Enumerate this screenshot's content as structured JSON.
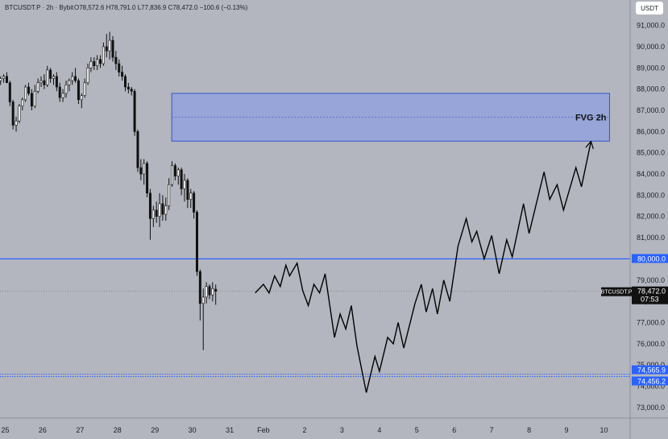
{
  "header": {
    "symbol_line": "BTCUSDT.P · 2h · Bybit",
    "ohlc": "O78,572.6 H78,791.0 L77,836.9 C78,472.0 −100.6 (−0.13%)",
    "currency": "USDT"
  },
  "chart_data": {
    "type": "candlestick",
    "title": "",
    "y_ticks": [
      "91,000.0",
      "90,000.0",
      "89,000.0",
      "88,000.0",
      "87,000.0",
      "86,000.0",
      "85,000.0",
      "84,000.0",
      "83,000.0",
      "82,000.0",
      "81,000.0",
      "80,000.0",
      "79,000.0",
      "78,000.0",
      "77,000.0",
      "76,000.0",
      "75,000.0",
      "74,000.0",
      "73,000.0"
    ],
    "y_tick_values": [
      91000,
      90000,
      89000,
      88000,
      87000,
      86000,
      85000,
      84000,
      83000,
      82000,
      81000,
      80000,
      79000,
      78000,
      77000,
      76000,
      75000,
      74000,
      73000
    ],
    "ylim": [
      72500,
      92200
    ],
    "x_ticks": [
      {
        "label": "25",
        "x": 0.5
      },
      {
        "label": "26",
        "x": 1.5
      },
      {
        "label": "27",
        "x": 2.5
      },
      {
        "label": "28",
        "x": 3.5
      },
      {
        "label": "29",
        "x": 4.5
      },
      {
        "label": "30",
        "x": 5.5
      },
      {
        "label": "31",
        "x": 6.5
      },
      {
        "label": "Feb",
        "x": 7.4
      },
      {
        "label": "2",
        "x": 8.5
      },
      {
        "label": "3",
        "x": 9.5
      },
      {
        "label": "4",
        "x": 10.5
      },
      {
        "label": "5",
        "x": 11.5
      },
      {
        "label": "6",
        "x": 12.5
      },
      {
        "label": "7",
        "x": 13.5
      },
      {
        "label": "8",
        "x": 14.5
      },
      {
        "label": "9",
        "x": 15.5
      },
      {
        "label": "10",
        "x": 16.5
      }
    ],
    "xlim": [
      0.36,
      17.2
    ],
    "candles_note": "[open, high, low, close] per 2h bar, Jan 25 – Feb 1",
    "candles": [
      [
        89150,
        89300,
        88900,
        89000
      ],
      [
        89000,
        89100,
        88700,
        88800
      ],
      [
        88800,
        88900,
        88500,
        88600
      ],
      [
        88600,
        88700,
        88200,
        88400
      ],
      [
        88400,
        88600,
        88200,
        88500
      ],
      [
        88500,
        88700,
        88300,
        88600
      ],
      [
        88600,
        88800,
        88400,
        88300
      ],
      [
        88300,
        88400,
        87200,
        87400
      ],
      [
        87400,
        87500,
        86100,
        86300
      ],
      [
        86300,
        86700,
        86000,
        86500
      ],
      [
        86500,
        87300,
        86400,
        87200
      ],
      [
        87200,
        87600,
        87000,
        87500
      ],
      [
        87500,
        88200,
        87400,
        88100
      ],
      [
        88100,
        88300,
        87700,
        87800
      ],
      [
        87800,
        88000,
        87000,
        87200
      ],
      [
        87200,
        88200,
        87100,
        87900
      ],
      [
        87900,
        88500,
        87800,
        88300
      ],
      [
        88300,
        88600,
        88100,
        88400
      ],
      [
        88400,
        88700,
        88000,
        88200
      ],
      [
        88200,
        89100,
        88100,
        88900
      ],
      [
        88900,
        89000,
        88300,
        88500
      ],
      [
        88500,
        88700,
        88200,
        88600
      ],
      [
        88600,
        88800,
        87900,
        88100
      ],
      [
        88100,
        88300,
        87400,
        87600
      ],
      [
        87600,
        88000,
        87400,
        87800
      ],
      [
        87800,
        88400,
        87600,
        88200
      ],
      [
        88200,
        88500,
        87900,
        88400
      ],
      [
        88400,
        88800,
        88200,
        88600
      ],
      [
        88600,
        89000,
        88300,
        88400
      ],
      [
        88400,
        88500,
        87300,
        87500
      ],
      [
        87500,
        87800,
        87100,
        87700
      ],
      [
        87700,
        88500,
        87600,
        88300
      ],
      [
        88300,
        89200,
        88200,
        89000
      ],
      [
        89000,
        89500,
        88800,
        89300
      ],
      [
        89300,
        89500,
        88900,
        89100
      ],
      [
        89100,
        89600,
        88900,
        89400
      ],
      [
        89400,
        89600,
        89000,
        89200
      ],
      [
        89200,
        90200,
        89100,
        90000
      ],
      [
        90000,
        90600,
        89500,
        89800
      ],
      [
        89800,
        90700,
        89400,
        90300
      ],
      [
        90300,
        90500,
        89300,
        89500
      ],
      [
        89500,
        89800,
        88900,
        89200
      ],
      [
        89200,
        89400,
        88600,
        88800
      ],
      [
        88800,
        89100,
        88400,
        88600
      ],
      [
        88600,
        88700,
        87900,
        88100
      ],
      [
        88100,
        88300,
        87800,
        88000
      ],
      [
        88000,
        88100,
        87700,
        87900
      ],
      [
        87900,
        88000,
        85800,
        86000
      ],
      [
        86000,
        86100,
        84100,
        84300
      ],
      [
        84300,
        84700,
        83700,
        84000
      ],
      [
        84000,
        84700,
        83500,
        84500
      ],
      [
        84500,
        84600,
        82900,
        83100
      ],
      [
        83100,
        83300,
        80900,
        81900
      ],
      [
        81900,
        82500,
        81500,
        82300
      ],
      [
        82300,
        82700,
        81700,
        82000
      ],
      [
        82000,
        83100,
        81500,
        82600
      ],
      [
        82600,
        83000,
        81800,
        82100
      ],
      [
        82100,
        82900,
        81800,
        82500
      ],
      [
        82500,
        83800,
        82300,
        83500
      ],
      [
        83500,
        84600,
        83400,
        84400
      ],
      [
        84400,
        84500,
        83700,
        83900
      ],
      [
        83900,
        84300,
        83500,
        84200
      ],
      [
        84200,
        84300,
        83000,
        83300
      ],
      [
        83300,
        84000,
        82700,
        83700
      ],
      [
        83700,
        83800,
        82400,
        82800
      ],
      [
        82800,
        83300,
        82400,
        83100
      ],
      [
        83100,
        83200,
        81900,
        82200
      ],
      [
        82200,
        82300,
        79200,
        79400
      ],
      [
        79400,
        79500,
        77100,
        77900
      ],
      [
        77900,
        78600,
        75700,
        78200
      ],
      [
        78200,
        78900,
        77900,
        78700
      ],
      [
        78700,
        78800,
        78100,
        78300
      ],
      [
        78300,
        78900,
        78000,
        78600
      ],
      [
        78572.6,
        78791,
        77836.9,
        78472
      ]
    ],
    "projection_path": [
      [
        7.18,
        78400
      ],
      [
        7.4,
        78800
      ],
      [
        7.55,
        78400
      ],
      [
        7.7,
        79200
      ],
      [
        7.85,
        78700
      ],
      [
        8.0,
        79700
      ],
      [
        8.1,
        79200
      ],
      [
        8.3,
        79800
      ],
      [
        8.45,
        78500
      ],
      [
        8.6,
        77800
      ],
      [
        8.75,
        78800
      ],
      [
        8.9,
        78400
      ],
      [
        9.05,
        79300
      ],
      [
        9.3,
        76300
      ],
      [
        9.45,
        77400
      ],
      [
        9.6,
        76700
      ],
      [
        9.75,
        77800
      ],
      [
        9.9,
        75900
      ],
      [
        10.15,
        73700
      ],
      [
        10.38,
        75400
      ],
      [
        10.5,
        74700
      ],
      [
        10.72,
        76300
      ],
      [
        10.87,
        76000
      ],
      [
        11.0,
        77000
      ],
      [
        11.15,
        75800
      ],
      [
        11.45,
        77900
      ],
      [
        11.62,
        78800
      ],
      [
        11.75,
        77500
      ],
      [
        11.92,
        78600
      ],
      [
        12.05,
        77400
      ],
      [
        12.22,
        79000
      ],
      [
        12.38,
        78000
      ],
      [
        12.6,
        80600
      ],
      [
        12.82,
        81900
      ],
      [
        12.97,
        80800
      ],
      [
        13.1,
        81300
      ],
      [
        13.3,
        80000
      ],
      [
        13.5,
        81100
      ],
      [
        13.7,
        79300
      ],
      [
        13.9,
        80900
      ],
      [
        14.05,
        80100
      ],
      [
        14.35,
        82600
      ],
      [
        14.5,
        81200
      ],
      [
        14.9,
        84100
      ],
      [
        15.05,
        82800
      ],
      [
        15.25,
        83500
      ],
      [
        15.42,
        82300
      ],
      [
        15.75,
        84300
      ],
      [
        15.9,
        83400
      ],
      [
        16.15,
        85500
      ]
    ],
    "fvg_zone": {
      "label": "FVG 2h",
      "top": 87800,
      "bottom": 85550,
      "x_start": 4.95,
      "x_end": 16.65
    },
    "levels": [
      {
        "value": 80000,
        "label": "80,000.0",
        "style": "solid",
        "color": "#2962ff"
      },
      {
        "value": 74565.9,
        "label": "74,565.9",
        "style": "dotted",
        "color": "#2962ff"
      },
      {
        "value": 74456.2,
        "label": "74,456.2",
        "style": "dotted",
        "color": "#2962ff"
      }
    ],
    "last_price": {
      "symbol": "BTCUSDT.P",
      "value": 78472,
      "label": "78,472.0",
      "countdown": "07:53"
    },
    "grid": false,
    "colors": {
      "background": "#b3b6bf",
      "candle_up": "#ffffff",
      "candle_down": "#111111",
      "fvg_fill": "#8e9fe0",
      "fvg_border": "#3a55c8",
      "level": "#2962ff",
      "projection": "#000000",
      "axis_border": "#8d9099",
      "text": "#1d1f26"
    }
  }
}
